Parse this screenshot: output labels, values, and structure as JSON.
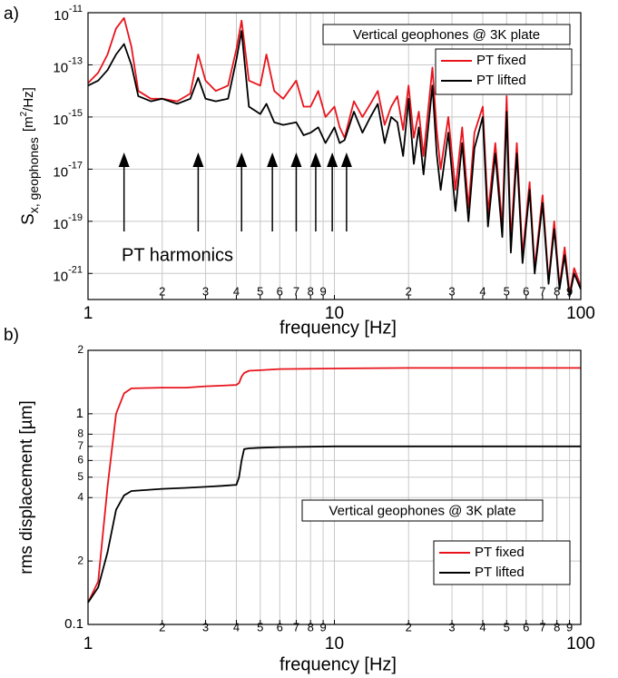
{
  "chart_data": [
    {
      "type": "line",
      "panel_label": "a)",
      "xlabel": "frequency [Hz]",
      "ylabel": {
        "main": "S",
        "subscript": "x, geophones",
        "unit": "[m",
        "unit_sup": "2",
        "unit_end": "/Hz]"
      },
      "log_x": true,
      "log_y": true,
      "grid": true,
      "xlim": [
        1,
        100
      ],
      "xticks": [
        1,
        2,
        3,
        4,
        5,
        6,
        7,
        8,
        9,
        10,
        {
          "value": 20,
          "label": "2"
        },
        {
          "value": 30,
          "label": "3"
        },
        {
          "value": 40,
          "label": "4"
        },
        {
          "value": 50,
          "label": "5"
        },
        {
          "value": 60,
          "label": "6"
        },
        {
          "value": 70,
          "label": "7"
        },
        {
          "value": 80,
          "label": "8"
        },
        {
          "value": 90,
          "label": "9"
        },
        100
      ],
      "ylim": [
        1e-22,
        1e-11
      ],
      "yticks": [
        {
          "value": 1e-11,
          "label": "10",
          "exponent": "-11"
        },
        {
          "value": 1e-13,
          "label": "10",
          "exponent": "-13"
        },
        {
          "value": 1e-15,
          "label": "10",
          "exponent": "-15"
        },
        {
          "value": 1e-17,
          "label": "10",
          "exponent": "-17"
        },
        {
          "value": 1e-19,
          "label": "10",
          "exponent": "-19"
        },
        {
          "value": 1e-21,
          "label": "10",
          "exponent": "-21"
        }
      ],
      "box_text": "Vertical geophones @ 3K plate",
      "annotation": {
        "text": "PT harmonics",
        "arrows": [
          1.4,
          2.8,
          4.2,
          5.6,
          7,
          8.4,
          9.8,
          11.2
        ]
      },
      "x": [
        1,
        1.1,
        1.2,
        1.3,
        1.4,
        1.5,
        1.6,
        1.8,
        2,
        2.3,
        2.6,
        2.8,
        3,
        3.3,
        3.7,
        4,
        4.2,
        4.5,
        5,
        5.3,
        5.7,
        6.2,
        7,
        7.5,
        8,
        8.6,
        9.2,
        10,
        10.5,
        11,
        12,
        13,
        14,
        15,
        16,
        17,
        18,
        19,
        20,
        21,
        22,
        23,
        25,
        26,
        27,
        29,
        31,
        33,
        35,
        37,
        40,
        42,
        45,
        48,
        50,
        52,
        55,
        58,
        62,
        65,
        70,
        74,
        78,
        82,
        86,
        90,
        94,
        100
      ],
      "series": [
        {
          "name": "PT fixed",
          "color": "#e8141c",
          "values": [
            2e-14,
            5e-14,
            2.5e-13,
            2.5e-12,
            6.3e-12,
            5e-13,
            1e-14,
            5e-15,
            5e-15,
            4e-15,
            7.9e-15,
            2.5e-13,
            2.5e-14,
            1e-14,
            1.6e-14,
            4e-13,
            5e-12,
            2.5e-14,
            1.6e-14,
            2.5e-13,
            1e-14,
            5e-15,
            2.5e-14,
            2.5e-15,
            2.5e-15,
            1e-14,
            1e-15,
            2.5e-15,
            4e-16,
            1.6e-16,
            4e-15,
            1e-15,
            3.2e-15,
            1e-14,
            5e-16,
            2.5e-15,
            6.3e-15,
            3.2e-16,
            1.6e-14,
            1.6e-16,
            1.6e-15,
            3.2e-17,
            7.9e-14,
            3.2e-16,
            1e-17,
            1e-15,
            1.6e-18,
            4e-16,
            3.2e-19,
            2.5e-16,
            2.5e-15,
            2e-19,
            1e-16,
            6.3e-20,
            6.3e-15,
            1.6e-20,
            1e-16,
            5e-21,
            3.2e-18,
            1.6e-21,
            1e-18,
            5e-22,
            1e-19,
            3.2e-22,
            1e-20,
            1.6e-22,
            1.6e-21,
            3.2e-22
          ]
        },
        {
          "name": "PT lifted",
          "color": "#000000",
          "values": [
            1.6e-14,
            2.5e-14,
            6.3e-14,
            2.5e-13,
            6.3e-13,
            1e-13,
            6.3e-15,
            4e-15,
            5e-15,
            3.2e-15,
            5e-15,
            3.2e-14,
            5e-15,
            4e-15,
            5e-15,
            1.6e-13,
            2e-12,
            2.5e-15,
            1.3e-15,
            3.2e-15,
            6.3e-16,
            5e-16,
            6.3e-16,
            2e-16,
            2.5e-16,
            4e-16,
            1e-16,
            4e-16,
            1e-16,
            1.3e-16,
            1.6e-15,
            2.5e-16,
            1e-15,
            3.2e-15,
            1e-16,
            1e-15,
            6.3e-16,
            3.2e-17,
            5e-15,
            1.6e-17,
            4e-16,
            6.3e-18,
            1.6e-14,
            4e-17,
            1.6e-18,
            2.5e-16,
            2.5e-19,
            1e-16,
            1e-19,
            6.3e-17,
            1e-15,
            6.3e-20,
            4e-17,
            2.5e-20,
            1.6e-15,
            6.3e-21,
            4e-17,
            2.5e-21,
            1.6e-18,
            1e-21,
            5e-19,
            4e-22,
            5e-20,
            2.5e-22,
            5e-21,
            1.3e-22,
            1e-21,
            2.5e-22
          ]
        }
      ]
    },
    {
      "type": "line",
      "panel_label": "b)",
      "xlabel": "frequency [Hz]",
      "ylabel": {
        "main": "rms displacement [µm]"
      },
      "log_x": true,
      "log_y": true,
      "grid": true,
      "xlim": [
        1,
        100
      ],
      "xticks": [
        1,
        2,
        3,
        4,
        5,
        6,
        7,
        8,
        9,
        10,
        {
          "value": 20,
          "label": "2"
        },
        {
          "value": 30,
          "label": "3"
        },
        {
          "value": 40,
          "label": "4"
        },
        {
          "value": 50,
          "label": "5"
        },
        {
          "value": 60,
          "label": "6"
        },
        {
          "value": 70,
          "label": "7"
        },
        {
          "value": 80,
          "label": "8"
        },
        {
          "value": 90,
          "label": "9"
        },
        100
      ],
      "ylim": [
        0.1,
        2
      ],
      "yticks": [
        0.1,
        {
          "value": 0.2,
          "label": "2"
        },
        {
          "value": 0.4,
          "label": "4"
        },
        {
          "value": 0.5,
          "label": "5"
        },
        {
          "value": 0.6,
          "label": "6"
        },
        {
          "value": 0.7,
          "label": "7"
        },
        {
          "value": 0.8,
          "label": "8"
        },
        1,
        2
      ],
      "box_text": "Vertical geophones @ 3K plate",
      "x": [
        1,
        1.1,
        1.2,
        1.3,
        1.4,
        1.5,
        2,
        2.5,
        3,
        3.5,
        4,
        4.1,
        4.2,
        4.3,
        4.5,
        5,
        6,
        10,
        20,
        50,
        100
      ],
      "series": [
        {
          "name": "PT fixed",
          "color": "#e8141c",
          "values": [
            0.127,
            0.16,
            0.45,
            1.0,
            1.25,
            1.32,
            1.33,
            1.33,
            1.35,
            1.36,
            1.37,
            1.4,
            1.5,
            1.56,
            1.6,
            1.61,
            1.63,
            1.64,
            1.65,
            1.65,
            1.65
          ]
        },
        {
          "name": "PT lifted",
          "color": "#000000",
          "values": [
            0.127,
            0.15,
            0.22,
            0.35,
            0.41,
            0.43,
            0.44,
            0.445,
            0.45,
            0.455,
            0.46,
            0.5,
            0.6,
            0.68,
            0.685,
            0.69,
            0.695,
            0.7,
            0.7,
            0.7,
            0.7
          ]
        }
      ]
    }
  ]
}
